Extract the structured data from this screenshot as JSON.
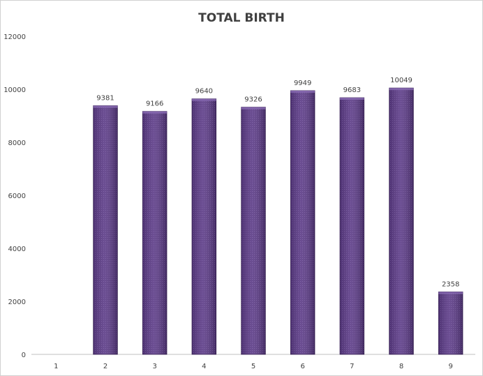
{
  "chart_data": {
    "type": "bar",
    "title": "TOTAL BIRTH",
    "xlabel": "",
    "ylabel": "",
    "categories": [
      "1",
      "2",
      "3",
      "4",
      "5",
      "6",
      "7",
      "8",
      "9"
    ],
    "values": [
      0,
      9381,
      9166,
      9640,
      9326,
      9949,
      9683,
      10049,
      2358
    ],
    "data_labels": [
      "",
      "9381",
      "9166",
      "9640",
      "9326",
      "9949",
      "9683",
      "10049",
      "2358"
    ],
    "ylim": [
      0,
      12000
    ],
    "yticks": [
      "0",
      "2000",
      "4000",
      "6000",
      "8000",
      "10000",
      "12000"
    ],
    "grid": false,
    "legend": "none",
    "colors": {
      "bar_fill": "#5b3a86",
      "bar_edge": "#3a2358",
      "axis": "#bfbfbf"
    }
  }
}
